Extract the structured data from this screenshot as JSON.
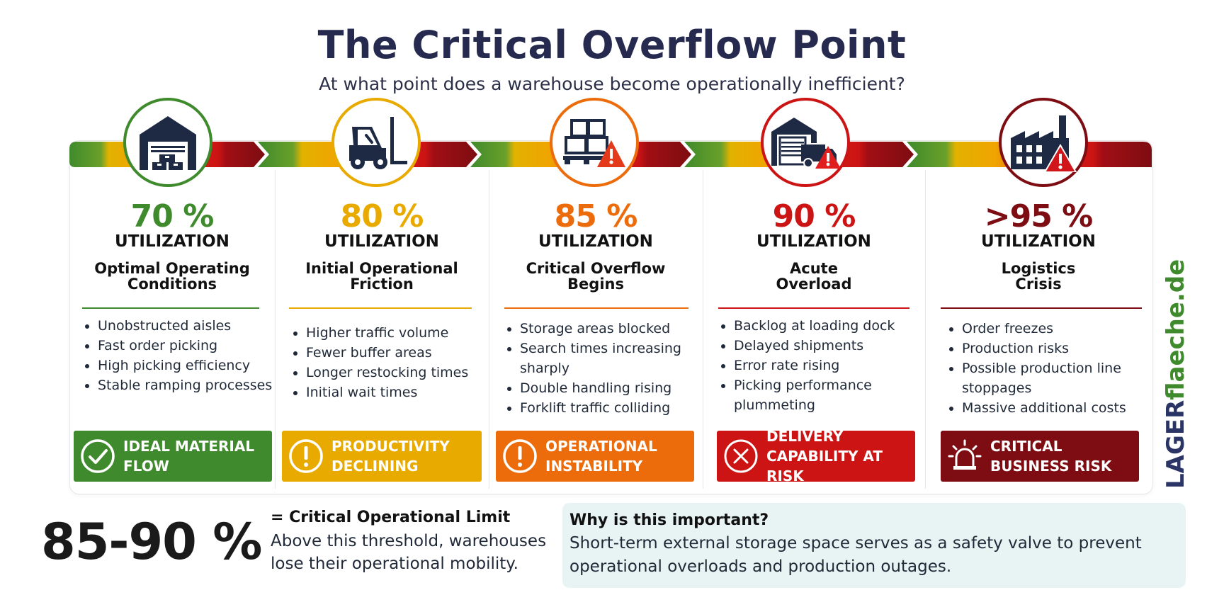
{
  "title": "The Critical Overflow Point",
  "subtitle": "At what point does a warehouse become operationally inefficient?",
  "stages": [
    {
      "percent": "70 %",
      "unit": "UTILIZATION",
      "heading": "Optimal Operating\nConditions",
      "bullets": [
        "Unobstructed aisles",
        "Fast order picking",
        "High picking efficiency",
        "Stable ramping processes"
      ],
      "badge": "IDEAL MATERIAL\nFLOW",
      "icon": "warehouse-icon",
      "badge_icon": "check-circle-icon",
      "color": "#3f8a2c"
    },
    {
      "percent": "80 %",
      "unit": "UTILIZATION",
      "heading": "Initial Operational\nFriction",
      "bullets": [
        "Higher traffic volume",
        "Fewer buffer areas",
        "Longer restocking times",
        "Initial wait times"
      ],
      "badge": "PRODUCTIVITY\nDECLINING",
      "icon": "forklift-icon",
      "badge_icon": "exclamation-circle-icon",
      "color": "#e9aa00"
    },
    {
      "percent": "85 %",
      "unit": "UTILIZATION",
      "heading": "Critical Overflow\nBegins",
      "bullets": [
        "Storage areas blocked",
        "Search times increasing sharply",
        "Double handling rising",
        "Forklift traffic colliding"
      ],
      "badge": "OPERATIONAL\nINSTABILITY",
      "icon": "pallet-warning-icon",
      "badge_icon": "exclamation-circle-icon",
      "color": "#ec6c0c"
    },
    {
      "percent": "90 %",
      "unit": "UTILIZATION",
      "heading": "Acute\nOverload",
      "bullets": [
        "Backlog at loading dock",
        "Delayed shipments",
        "Error rate rising",
        "Picking performance plummeting"
      ],
      "badge": "DELIVERY\nCAPABILITY AT RISK",
      "icon": "loading-dock-truck-icon",
      "badge_icon": "x-circle-icon",
      "color": "#cc1414"
    },
    {
      "percent": ">95 %",
      "unit": "UTILIZATION",
      "heading": "Logistics\nCrisis",
      "bullets": [
        "Order freezes",
        "Production risks",
        "Possible production line stoppages",
        "Massive additional costs"
      ],
      "badge": "CRITICAL\nBUSINESS RISK",
      "icon": "factory-warning-icon",
      "badge_icon": "alarm-light-icon",
      "color": "#7d0d12"
    }
  ],
  "limit": {
    "value": "85-90 %",
    "label": "= Critical Operational Limit",
    "text": "Above this threshold, warehouses lose their operational mobility."
  },
  "why": {
    "title": "Why is this important?",
    "text": "Short-term external storage space serves as a safety valve to prevent operational overloads and production outages."
  },
  "brand": {
    "part1": "LAGER",
    "part2": "flaeche.de",
    "color1": "#2a3566",
    "color2": "#3f8a2c"
  }
}
